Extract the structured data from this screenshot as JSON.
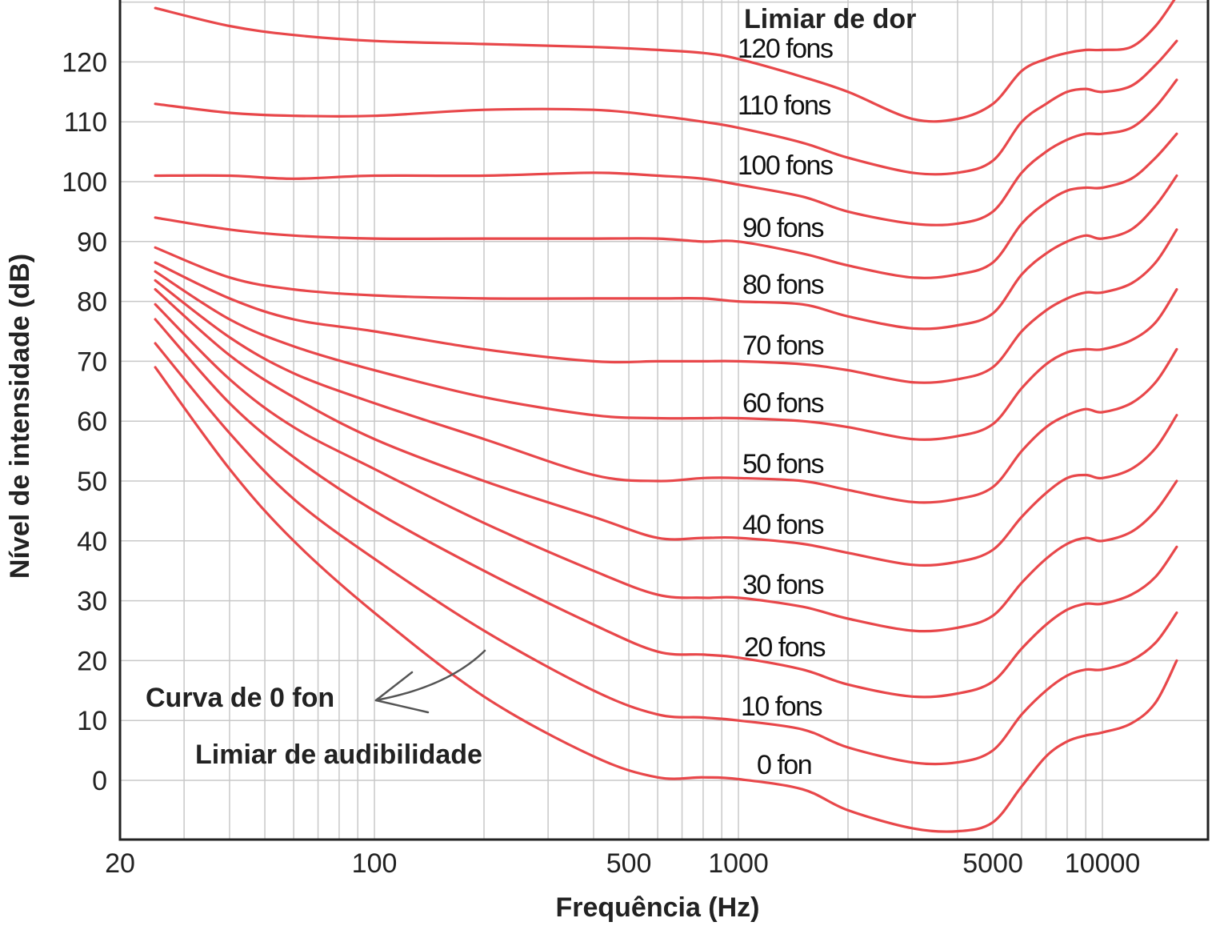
{
  "chart_data": {
    "type": "line",
    "x_scale": "log",
    "xlim": [
      20,
      18000
    ],
    "ylim": [
      -10,
      130
    ],
    "grid": true,
    "xlabel": "Frequência (Hz)",
    "ylabel": "Nível de intensidade (dB)",
    "x_tick_labels": [
      "20",
      "100",
      "500",
      "1000",
      "5000",
      "10000"
    ],
    "x_ticks": [
      20,
      100,
      500,
      1000,
      5000,
      10000
    ],
    "y_ticks": [
      0,
      10,
      20,
      30,
      40,
      50,
      60,
      70,
      80,
      90,
      100,
      110,
      120
    ],
    "y_tick_labels": [
      "0",
      "10",
      "20",
      "30",
      "40",
      "50",
      "60",
      "70",
      "80",
      "90",
      "100",
      "110",
      "120"
    ],
    "x": [
      25,
      40,
      60,
      100,
      200,
      400,
      600,
      800,
      1000,
      1500,
      2000,
      3000,
      4000,
      5000,
      6000,
      7000,
      8000,
      9000,
      10000,
      12000,
      14000,
      16000
    ],
    "series": [
      {
        "name": "0 fon",
        "values": [
          69,
          52,
          40,
          28,
          14,
          4,
          0.5,
          0.5,
          0.2,
          -1.5,
          -5,
          -8,
          -8.5,
          -7,
          -1,
          4,
          6.5,
          7.5,
          8,
          9.5,
          13,
          20
        ]
      },
      {
        "name": "10 fons",
        "values": [
          73,
          58,
          47,
          37,
          25,
          15,
          11,
          10.5,
          10,
          8.5,
          5.5,
          3,
          3,
          5,
          11,
          15,
          17.5,
          18.5,
          18.5,
          20,
          23,
          28
        ]
      },
      {
        "name": "20 fons",
        "values": [
          77,
          63,
          54,
          45,
          35,
          26,
          21.5,
          21,
          20.5,
          18.5,
          16,
          14,
          14.5,
          16.5,
          22,
          26,
          28.5,
          29.5,
          29.5,
          31,
          34,
          39
        ]
      },
      {
        "name": "30 fons",
        "values": [
          79.5,
          67,
          59,
          52,
          43,
          35,
          31,
          30.5,
          30.5,
          29,
          27,
          25,
          25.5,
          27.5,
          33,
          37,
          39.5,
          40.5,
          40,
          41.5,
          45,
          50
        ]
      },
      {
        "name": "40 fons",
        "values": [
          82,
          71,
          64,
          57,
          50,
          44,
          40.5,
          40.5,
          40.5,
          39.5,
          38,
          36,
          36.5,
          38.5,
          44,
          48,
          50.5,
          51,
          50.5,
          52,
          55.5,
          61
        ]
      },
      {
        "name": "50 fons",
        "values": [
          83.5,
          74,
          68,
          63,
          57,
          51,
          50,
          50.5,
          50.5,
          50,
          48.5,
          46.5,
          47,
          49,
          55,
          59,
          61,
          62,
          61.5,
          63,
          66.5,
          72
        ]
      },
      {
        "name": "60 fons",
        "values": [
          85,
          77,
          72.5,
          68.5,
          64,
          61,
          60.5,
          60.5,
          60.5,
          60,
          59,
          57,
          57.5,
          59.5,
          65.5,
          69.5,
          71.5,
          72,
          72,
          73.5,
          76.5,
          82
        ]
      },
      {
        "name": "70 fons",
        "values": [
          86.5,
          80.5,
          77,
          75,
          72,
          70,
          70,
          70,
          70,
          69.5,
          68.5,
          66.5,
          67,
          69,
          75,
          78.5,
          80.5,
          81.5,
          81.5,
          83,
          86.5,
          92
        ]
      },
      {
        "name": "80 fons",
        "values": [
          89,
          84,
          82,
          81,
          80.5,
          80.5,
          80.5,
          80.5,
          80,
          79.5,
          77.5,
          75.5,
          76,
          78,
          84.5,
          88,
          90,
          91,
          90.5,
          92,
          96,
          101
        ]
      },
      {
        "name": "90 fons",
        "values": [
          94,
          92,
          91,
          90.5,
          90.5,
          90.5,
          90.5,
          90,
          90,
          88,
          86,
          84,
          84.5,
          86.5,
          93,
          96.5,
          98.5,
          99,
          99,
          100.5,
          104,
          108
        ]
      },
      {
        "name": "100 fons",
        "values": [
          101,
          101,
          100.5,
          101,
          101,
          101.5,
          101,
          100.5,
          99.5,
          97.5,
          95,
          93,
          93,
          95,
          101.5,
          105,
          107,
          108,
          108,
          109,
          112.5,
          117
        ]
      },
      {
        "name": "110 fons",
        "values": [
          113,
          111.5,
          111,
          111,
          112,
          112,
          111,
          110,
          109,
          106.5,
          104,
          101.5,
          101.5,
          103.5,
          110,
          113,
          115,
          115.5,
          115,
          116,
          119.5,
          123.5
        ]
      },
      {
        "name": "120 fons",
        "values": [
          129,
          126,
          124.5,
          123.5,
          123,
          122.5,
          122,
          121.5,
          120.5,
          117.5,
          115,
          110.5,
          110.5,
          113,
          118.5,
          120.5,
          121.5,
          122,
          122,
          122.5,
          126,
          131
        ]
      }
    ],
    "curve_labels": [
      "Limiar de dor",
      "120 fons",
      "110 fons",
      "100 fons",
      "90 fons",
      "80 fons",
      "70 fons",
      "60 fons",
      "50 fons",
      "40 fons",
      "30 fons",
      "20 fons",
      "10 fons",
      "0 fon"
    ],
    "annotations": [
      "Curva de 0 fon",
      "Limiar de audibilidade"
    ],
    "colors": {
      "curve": "#e8474a",
      "grid": "#c8c8c8",
      "frame": "#222222",
      "arrow": "#555555"
    }
  }
}
